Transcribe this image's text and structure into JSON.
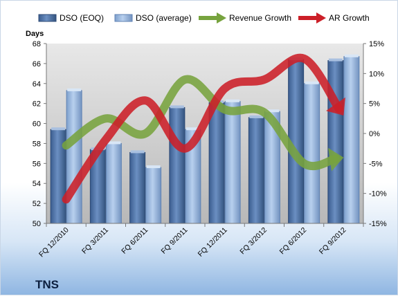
{
  "chart_data": {
    "type": "bar",
    "ticker": "TNS",
    "ylabel": "Days",
    "ylim": [
      50,
      68
    ],
    "y_ticks": [
      50,
      52,
      54,
      56,
      58,
      60,
      62,
      64,
      66,
      68
    ],
    "y2lim": [
      -15,
      15
    ],
    "y2_ticks": [
      "-15%",
      "-10%",
      "-5%",
      "0%",
      "5%",
      "10%",
      "15%"
    ],
    "y2_tick_values": [
      -15,
      -10,
      -5,
      0,
      5,
      10,
      15
    ],
    "categories": [
      "FQ 12/2010",
      "FQ 3/2011",
      "FQ 6/2011",
      "FQ 9/2011",
      "FQ 12/2011",
      "FQ 3/2012",
      "FQ 6/2012",
      "FQ 9/2012"
    ],
    "series": [
      {
        "name": "DSO (EOQ)",
        "kind": "bar",
        "axis": "left",
        "values": [
          59.4,
          57.4,
          57.1,
          61.6,
          62.1,
          60.6,
          66.4,
          66.3
        ]
      },
      {
        "name": "DSO (average)",
        "kind": "bar",
        "axis": "left",
        "values": [
          63.3,
          58.0,
          55.6,
          59.4,
          62.2,
          61.2,
          64.0,
          66.7
        ]
      },
      {
        "name": "Revenue Growth",
        "kind": "arrow",
        "axis": "right",
        "values": [
          -2.0,
          2.5,
          0.0,
          9.0,
          4.0,
          3.5,
          -5.0,
          -4.0
        ]
      },
      {
        "name": "AR Growth",
        "kind": "arrow",
        "axis": "right",
        "values": [
          -11.0,
          -1.0,
          5.5,
          -2.5,
          7.5,
          9.0,
          12.5,
          3.0
        ]
      }
    ],
    "grid": false,
    "legend_position": "top",
    "colors": {
      "dso_eoq": "#4a6fa3",
      "dso_average": "#8fb0db",
      "revenue_growth": "#77a33e",
      "ar_growth": "#cc1f28",
      "plot_background": "#c7c7c7"
    }
  }
}
